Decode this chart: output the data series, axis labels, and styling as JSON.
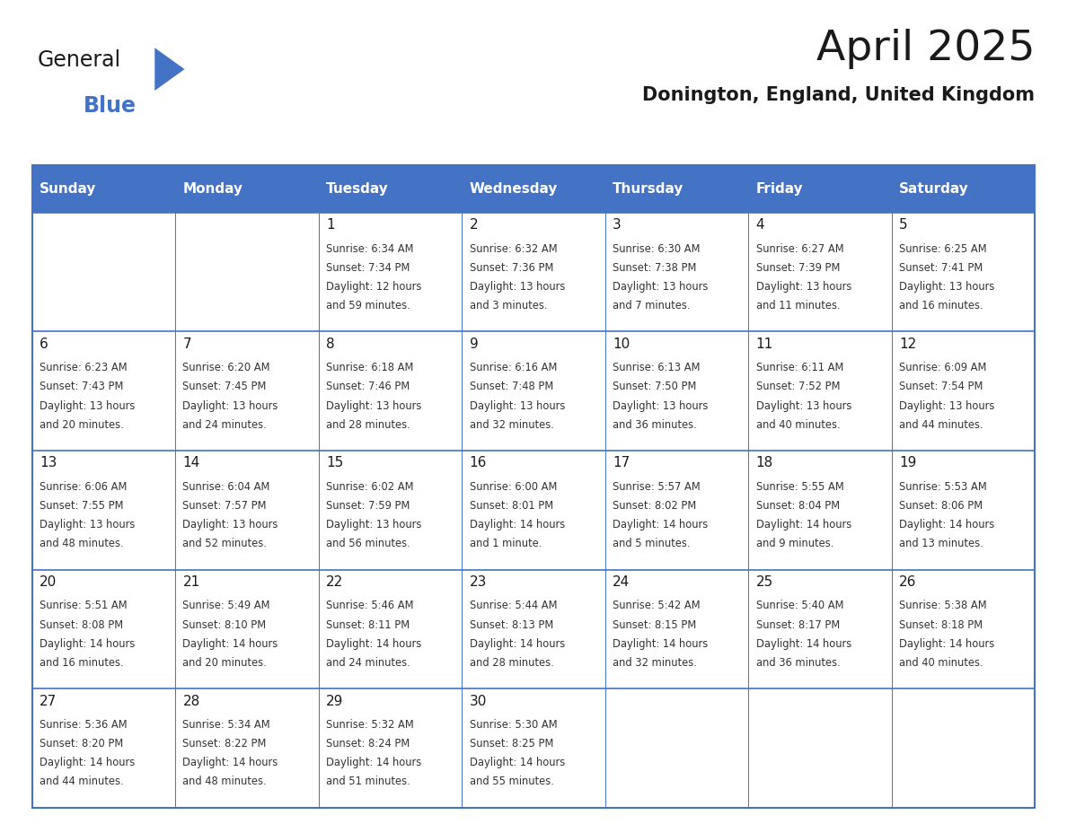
{
  "title": "April 2025",
  "subtitle": "Donington, England, United Kingdom",
  "header_bg": "#4472C4",
  "header_text": "#FFFFFF",
  "border_color": "#4472C4",
  "day_names": [
    "Sunday",
    "Monday",
    "Tuesday",
    "Wednesday",
    "Thursday",
    "Friday",
    "Saturday"
  ],
  "title_color": "#1a1a1a",
  "subtitle_color": "#1a1a1a",
  "cell_text_color": "#333333",
  "day_num_color": "#1a1a1a",
  "logo_general_color": "#1a1a1a",
  "logo_blue_color": "#4472C4",
  "calendar": [
    [
      null,
      null,
      {
        "day": 1,
        "sunrise": "6:34 AM",
        "sunset": "7:34 PM",
        "daylight": "12 hours\nand 59 minutes."
      },
      {
        "day": 2,
        "sunrise": "6:32 AM",
        "sunset": "7:36 PM",
        "daylight": "13 hours\nand 3 minutes."
      },
      {
        "day": 3,
        "sunrise": "6:30 AM",
        "sunset": "7:38 PM",
        "daylight": "13 hours\nand 7 minutes."
      },
      {
        "day": 4,
        "sunrise": "6:27 AM",
        "sunset": "7:39 PM",
        "daylight": "13 hours\nand 11 minutes."
      },
      {
        "day": 5,
        "sunrise": "6:25 AM",
        "sunset": "7:41 PM",
        "daylight": "13 hours\nand 16 minutes."
      }
    ],
    [
      {
        "day": 6,
        "sunrise": "6:23 AM",
        "sunset": "7:43 PM",
        "daylight": "13 hours\nand 20 minutes."
      },
      {
        "day": 7,
        "sunrise": "6:20 AM",
        "sunset": "7:45 PM",
        "daylight": "13 hours\nand 24 minutes."
      },
      {
        "day": 8,
        "sunrise": "6:18 AM",
        "sunset": "7:46 PM",
        "daylight": "13 hours\nand 28 minutes."
      },
      {
        "day": 9,
        "sunrise": "6:16 AM",
        "sunset": "7:48 PM",
        "daylight": "13 hours\nand 32 minutes."
      },
      {
        "day": 10,
        "sunrise": "6:13 AM",
        "sunset": "7:50 PM",
        "daylight": "13 hours\nand 36 minutes."
      },
      {
        "day": 11,
        "sunrise": "6:11 AM",
        "sunset": "7:52 PM",
        "daylight": "13 hours\nand 40 minutes."
      },
      {
        "day": 12,
        "sunrise": "6:09 AM",
        "sunset": "7:54 PM",
        "daylight": "13 hours\nand 44 minutes."
      }
    ],
    [
      {
        "day": 13,
        "sunrise": "6:06 AM",
        "sunset": "7:55 PM",
        "daylight": "13 hours\nand 48 minutes."
      },
      {
        "day": 14,
        "sunrise": "6:04 AM",
        "sunset": "7:57 PM",
        "daylight": "13 hours\nand 52 minutes."
      },
      {
        "day": 15,
        "sunrise": "6:02 AM",
        "sunset": "7:59 PM",
        "daylight": "13 hours\nand 56 minutes."
      },
      {
        "day": 16,
        "sunrise": "6:00 AM",
        "sunset": "8:01 PM",
        "daylight": "14 hours\nand 1 minute."
      },
      {
        "day": 17,
        "sunrise": "5:57 AM",
        "sunset": "8:02 PM",
        "daylight": "14 hours\nand 5 minutes."
      },
      {
        "day": 18,
        "sunrise": "5:55 AM",
        "sunset": "8:04 PM",
        "daylight": "14 hours\nand 9 minutes."
      },
      {
        "day": 19,
        "sunrise": "5:53 AM",
        "sunset": "8:06 PM",
        "daylight": "14 hours\nand 13 minutes."
      }
    ],
    [
      {
        "day": 20,
        "sunrise": "5:51 AM",
        "sunset": "8:08 PM",
        "daylight": "14 hours\nand 16 minutes."
      },
      {
        "day": 21,
        "sunrise": "5:49 AM",
        "sunset": "8:10 PM",
        "daylight": "14 hours\nand 20 minutes."
      },
      {
        "day": 22,
        "sunrise": "5:46 AM",
        "sunset": "8:11 PM",
        "daylight": "14 hours\nand 24 minutes."
      },
      {
        "day": 23,
        "sunrise": "5:44 AM",
        "sunset": "8:13 PM",
        "daylight": "14 hours\nand 28 minutes."
      },
      {
        "day": 24,
        "sunrise": "5:42 AM",
        "sunset": "8:15 PM",
        "daylight": "14 hours\nand 32 minutes."
      },
      {
        "day": 25,
        "sunrise": "5:40 AM",
        "sunset": "8:17 PM",
        "daylight": "14 hours\nand 36 minutes."
      },
      {
        "day": 26,
        "sunrise": "5:38 AM",
        "sunset": "8:18 PM",
        "daylight": "14 hours\nand 40 minutes."
      }
    ],
    [
      {
        "day": 27,
        "sunrise": "5:36 AM",
        "sunset": "8:20 PM",
        "daylight": "14 hours\nand 44 minutes."
      },
      {
        "day": 28,
        "sunrise": "5:34 AM",
        "sunset": "8:22 PM",
        "daylight": "14 hours\nand 48 minutes."
      },
      {
        "day": 29,
        "sunrise": "5:32 AM",
        "sunset": "8:24 PM",
        "daylight": "14 hours\nand 51 minutes."
      },
      {
        "day": 30,
        "sunrise": "5:30 AM",
        "sunset": "8:25 PM",
        "daylight": "14 hours\nand 55 minutes."
      },
      null,
      null,
      null
    ]
  ]
}
